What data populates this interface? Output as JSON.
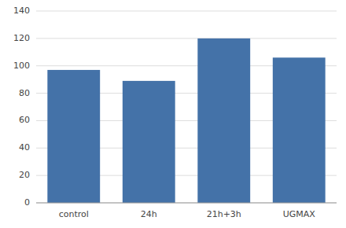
{
  "chart_data": {
    "type": "bar",
    "categories": [
      "control",
      "24h",
      "21h+3h",
      "UGMAX"
    ],
    "values": [
      97,
      89,
      120,
      106
    ],
    "color": "#4472a8",
    "ylim": [
      0,
      140
    ],
    "yticks": [
      0,
      20,
      40,
      60,
      80,
      100,
      120,
      140
    ],
    "grid": true
  }
}
